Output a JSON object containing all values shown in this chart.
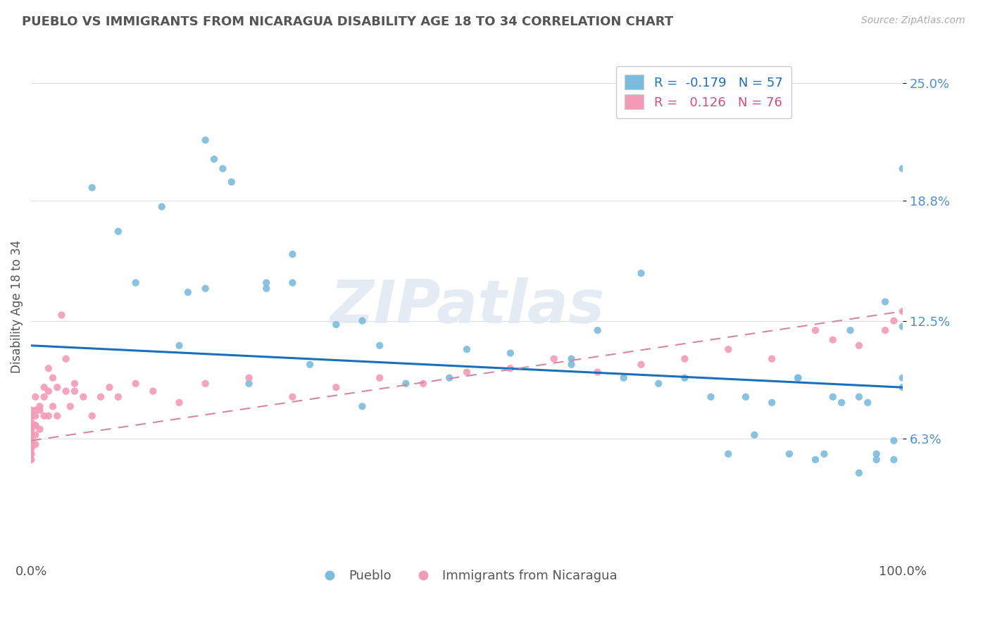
{
  "title": "PUEBLO VS IMMIGRANTS FROM NICARAGUA DISABILITY AGE 18 TO 34 CORRELATION CHART",
  "source_text": "Source: ZipAtlas.com",
  "ylabel": "Disability Age 18 to 34",
  "xlim": [
    0,
    100
  ],
  "ylim": [
    0,
    26.5
  ],
  "xtick_positions": [
    0,
    100
  ],
  "xtick_labels": [
    "0.0%",
    "100.0%"
  ],
  "ytick_values": [
    6.3,
    12.5,
    18.8,
    25.0
  ],
  "ytick_labels": [
    "6.3%",
    "12.5%",
    "18.8%",
    "25.0%"
  ],
  "pueblo_color": "#7bbcde",
  "nicaragua_color": "#f49ab5",
  "pueblo_trend_color": "#1a6fbd",
  "nicaragua_trend_color": "#d4879e",
  "legend_R1": "-0.179",
  "legend_N1": "57",
  "legend_R2": "0.126",
  "legend_N2": "76",
  "watermark": "ZIPatlas",
  "pueblo_x": [
    7,
    10,
    12,
    17,
    18,
    20,
    21,
    22,
    23,
    27,
    27,
    30,
    32,
    35,
    38,
    40,
    43,
    48,
    55,
    62,
    68,
    72,
    75,
    80,
    82,
    85,
    87,
    88,
    90,
    91,
    92,
    93,
    95,
    96,
    97,
    98,
    99,
    99,
    100,
    100,
    100,
    65,
    78,
    83,
    94,
    50,
    30,
    25,
    15,
    20,
    38,
    62,
    70,
    88,
    95,
    97,
    100
  ],
  "pueblo_y": [
    19.5,
    17.2,
    14.5,
    11.2,
    14.0,
    22.0,
    21.0,
    20.5,
    19.8,
    14.2,
    14.5,
    16.0,
    10.2,
    12.3,
    12.5,
    11.2,
    9.2,
    9.5,
    10.8,
    10.2,
    9.5,
    9.2,
    9.5,
    5.5,
    8.5,
    8.2,
    5.5,
    9.5,
    5.2,
    5.5,
    8.5,
    8.2,
    4.5,
    8.2,
    5.2,
    13.5,
    6.2,
    5.2,
    20.5,
    12.2,
    9.5,
    12.0,
    8.5,
    6.5,
    12.0,
    11.0,
    14.5,
    9.2,
    18.5,
    14.2,
    8.0,
    10.5,
    15.0,
    9.5,
    8.5,
    5.5,
    9.0
  ],
  "nicaragua_x": [
    0.0,
    0.0,
    0.0,
    0.0,
    0.0,
    0.0,
    0.0,
    0.0,
    0.0,
    0.0,
    0.0,
    0.0,
    0.0,
    0.0,
    0.0,
    0.0,
    0.0,
    0.0,
    0.0,
    0.0,
    0.0,
    0.0,
    0.5,
    0.5,
    0.5,
    0.5,
    0.5,
    0.5,
    0.5,
    1.0,
    1.0,
    1.0,
    1.5,
    1.5,
    1.5,
    2.0,
    2.0,
    2.0,
    2.5,
    2.5,
    3.0,
    3.0,
    3.5,
    4.0,
    4.0,
    4.5,
    5.0,
    5.0,
    6.0,
    7.0,
    8.0,
    9.0,
    10.0,
    12.0,
    14.0,
    17.0,
    20.0,
    25.0,
    30.0,
    35.0,
    40.0,
    45.0,
    50.0,
    55.0,
    60.0,
    65.0,
    70.0,
    75.0,
    80.0,
    85.0,
    90.0,
    92.0,
    95.0,
    98.0,
    99.0,
    100.0
  ],
  "nicaragua_y": [
    7.0,
    5.8,
    5.2,
    5.5,
    6.8,
    6.2,
    6.5,
    7.8,
    7.0,
    5.5,
    6.2,
    7.5,
    7.2,
    5.2,
    6.0,
    6.8,
    5.5,
    6.0,
    5.8,
    6.5,
    5.5,
    5.8,
    7.5,
    7.0,
    6.0,
    8.5,
    7.0,
    7.8,
    6.5,
    7.8,
    6.8,
    8.0,
    8.5,
    9.0,
    7.5,
    8.8,
    7.5,
    10.0,
    8.0,
    9.5,
    7.5,
    9.0,
    12.8,
    8.8,
    10.5,
    8.0,
    9.2,
    8.8,
    8.5,
    7.5,
    8.5,
    9.0,
    8.5,
    9.2,
    8.8,
    8.2,
    9.2,
    9.5,
    8.5,
    9.0,
    9.5,
    9.2,
    9.8,
    10.0,
    10.5,
    9.8,
    10.2,
    10.5,
    11.0,
    10.5,
    12.0,
    11.5,
    11.2,
    12.0,
    12.5,
    13.0
  ]
}
